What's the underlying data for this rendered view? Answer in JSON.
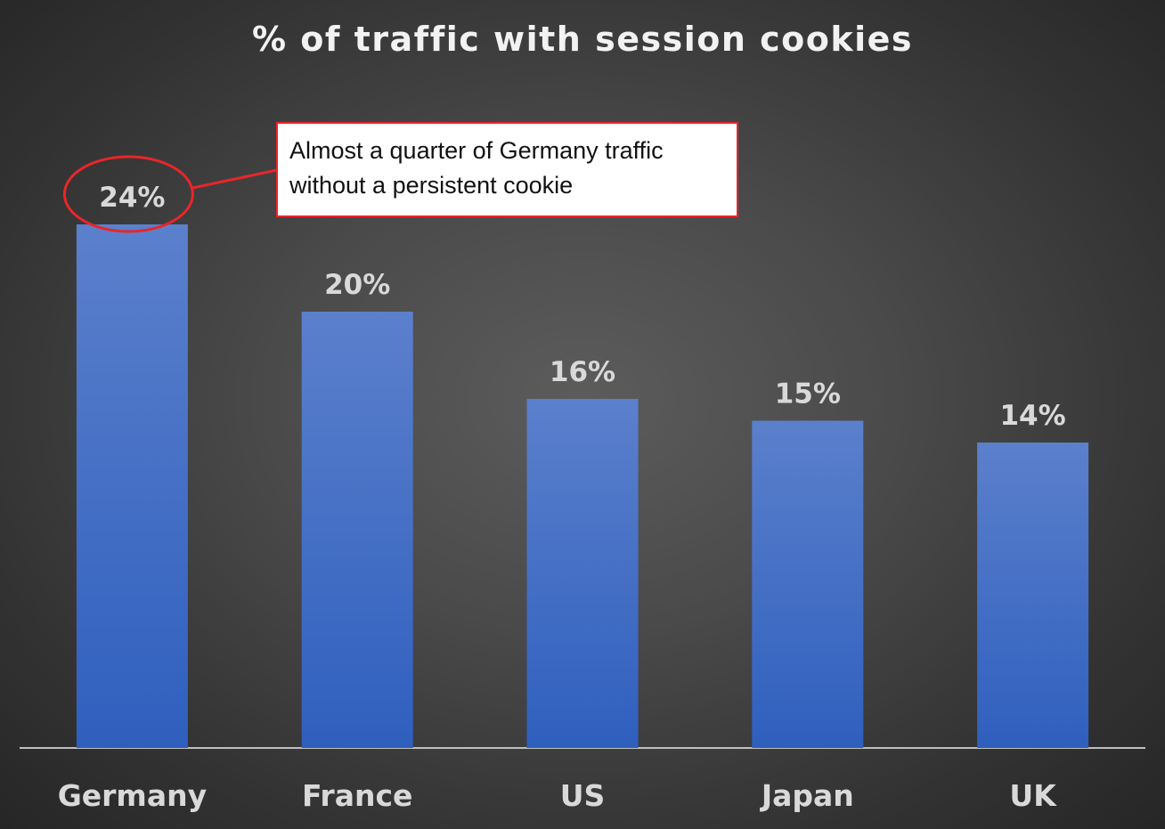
{
  "chart_data": {
    "type": "bar",
    "title": "% of traffic with session cookies",
    "categories": [
      "Germany",
      "France",
      "US",
      "Japan",
      "UK"
    ],
    "values": [
      24,
      20,
      16,
      15,
      14
    ],
    "data_labels": [
      "24%",
      "20%",
      "16%",
      "15%",
      "14%"
    ],
    "ylim": [
      0,
      24
    ],
    "grid": false,
    "legend": "none",
    "colors": {
      "bar_top": "#5b80cc",
      "bar_bottom": "#2f5fbe",
      "label": "#d9d9d9",
      "annotation_border": "#e8262a",
      "title": "#f2f2f2"
    },
    "annotation": {
      "line1": "Almost a quarter of Germany traffic",
      "line2": "without a persistent cookie",
      "target_category": "Germany"
    }
  }
}
